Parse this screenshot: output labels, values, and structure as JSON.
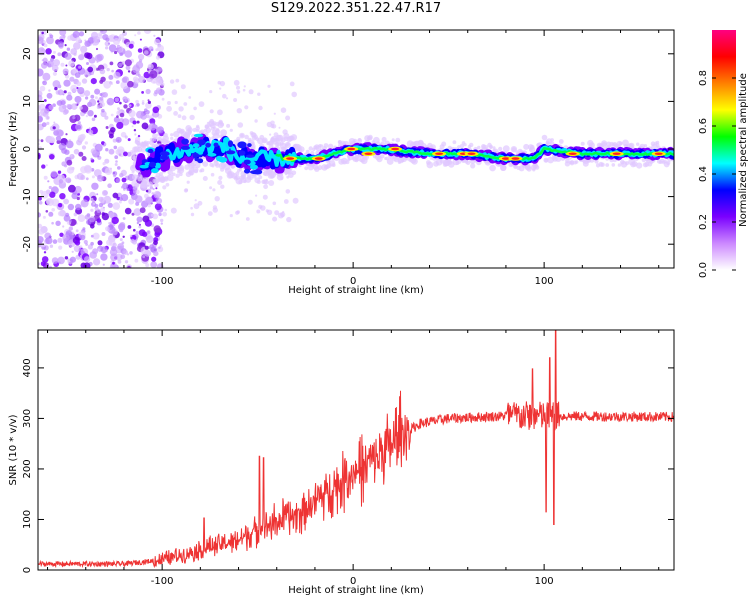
{
  "title": "S129.2022.351.22.47.R17",
  "chart_data": [
    {
      "type": "heatmap",
      "xlabel": "Height of straight line (km)",
      "ylabel": "Frequency (Hz)",
      "xlim": [
        -165,
        168
      ],
      "ylim": [
        -25,
        25
      ],
      "x_ticks": [
        -100,
        0,
        100
      ],
      "x_tick_labels": [
        "-100",
        "0",
        "100"
      ],
      "y_ticks": [
        20,
        10,
        0,
        -10,
        -20
      ],
      "y_tick_labels": [
        "20",
        "10",
        "0",
        "-10",
        "-20"
      ],
      "colorbar": {
        "label": "Normalized spectral amplitude",
        "range": [
          0,
          1
        ],
        "ticks": [
          0.0,
          0.2,
          0.4,
          0.6,
          0.8
        ],
        "tick_labels": [
          "0.0",
          "0.2",
          "0.4",
          "0.6",
          "0.8"
        ],
        "colors": [
          "#ffffff",
          "#cc88ff",
          "#7a00ff",
          "#0000ff",
          "#00ffff",
          "#00ff00",
          "#ffff00",
          "#ff8000",
          "#ff0000",
          "#ff0080"
        ]
      },
      "band_center": [
        {
          "x": -110,
          "f": -3
        },
        {
          "x": -95,
          "f": -1
        },
        {
          "x": -80,
          "f": 0
        },
        {
          "x": -70,
          "f": 1
        },
        {
          "x": -60,
          "f": -2
        },
        {
          "x": -45,
          "f": -2
        },
        {
          "x": -35,
          "f": -2
        },
        {
          "x": -20,
          "f": -2
        },
        {
          "x": -10,
          "f": -1
        },
        {
          "x": 0,
          "f": 0
        },
        {
          "x": 15,
          "f": 0
        },
        {
          "x": 40,
          "f": -1
        },
        {
          "x": 60,
          "f": -1
        },
        {
          "x": 80,
          "f": -2
        },
        {
          "x": 95,
          "f": -2
        },
        {
          "x": 100,
          "f": 0
        },
        {
          "x": 120,
          "f": -1
        },
        {
          "x": 140,
          "f": -1
        },
        {
          "x": 168,
          "f": -1
        }
      ],
      "grid": false
    },
    {
      "type": "line",
      "xlabel": "Height of straight line (km)",
      "ylabel": "SNR (10 * v/v)",
      "xlim": [
        -165,
        168
      ],
      "ylim": [
        0,
        475
      ],
      "x_ticks": [
        -100,
        0,
        100
      ],
      "x_tick_labels": [
        "-100",
        "0",
        "100"
      ],
      "y_ticks": [
        0,
        100,
        200,
        300,
        400
      ],
      "y_tick_labels": [
        "0",
        "100",
        "200",
        "300",
        "400"
      ],
      "color": "#ee3333",
      "baseline": [
        {
          "x": -165,
          "y": 12
        },
        {
          "x": -120,
          "y": 12
        },
        {
          "x": -100,
          "y": 20
        },
        {
          "x": -80,
          "y": 40
        },
        {
          "x": -60,
          "y": 60
        },
        {
          "x": -45,
          "y": 90
        },
        {
          "x": -30,
          "y": 110
        },
        {
          "x": -15,
          "y": 150
        },
        {
          "x": 0,
          "y": 190
        },
        {
          "x": 15,
          "y": 230
        },
        {
          "x": 25,
          "y": 265
        },
        {
          "x": 35,
          "y": 290
        },
        {
          "x": 50,
          "y": 300
        },
        {
          "x": 80,
          "y": 305
        },
        {
          "x": 168,
          "y": 303
        }
      ],
      "spikes": [
        {
          "x": -49,
          "y": 225
        },
        {
          "x": -47,
          "y": 222
        },
        {
          "x": -78,
          "y": 103
        },
        {
          "x": 94,
          "y": 398
        },
        {
          "x": 103,
          "y": 420
        },
        {
          "x": 105,
          "y": 90
        },
        {
          "x": 106,
          "y": 475
        },
        {
          "x": 101,
          "y": 115
        }
      ],
      "grid": false
    }
  ]
}
